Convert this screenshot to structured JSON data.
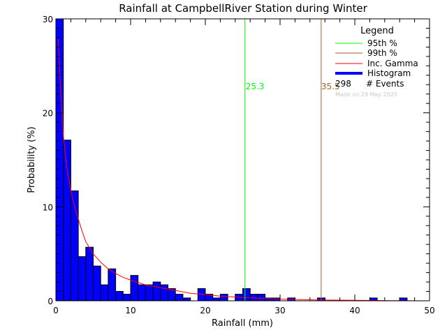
{
  "chart_data": {
    "type": "bar",
    "title": "Rainfall at CampbellRiver Station during Winter",
    "xlabel": "Rainfall (mm)",
    "ylabel": "Probability (%)",
    "xlim": [
      0,
      50
    ],
    "ylim": [
      0,
      30
    ],
    "x_ticks": [
      0,
      10,
      20,
      30,
      40,
      50
    ],
    "y_ticks": [
      0,
      10,
      20,
      30
    ],
    "bin_width": 1,
    "histogram": {
      "name": "Histogram",
      "color": "#0000ff",
      "bin_starts": [
        0,
        1,
        2,
        3,
        4,
        5,
        6,
        7,
        8,
        9,
        10,
        11,
        12,
        13,
        14,
        15,
        16,
        17,
        18,
        19,
        20,
        21,
        22,
        23,
        24,
        25,
        26,
        27,
        28,
        29,
        30,
        31,
        32,
        33,
        34,
        35,
        36,
        37,
        38,
        39,
        40,
        41,
        42,
        43,
        44,
        45,
        46,
        47,
        48,
        49
      ],
      "values": [
        30.0,
        17.1,
        11.7,
        4.7,
        5.7,
        3.7,
        1.7,
        3.4,
        1.0,
        0.7,
        2.7,
        1.7,
        1.7,
        2.0,
        1.7,
        1.3,
        0.7,
        0.3,
        0.0,
        1.3,
        0.7,
        0.3,
        0.7,
        0.0,
        0.7,
        1.3,
        0.7,
        0.7,
        0.3,
        0.3,
        0.0,
        0.3,
        0.0,
        0.0,
        0.0,
        0.3,
        0.0,
        0.0,
        0.0,
        0.0,
        0.0,
        0.0,
        0.3,
        0.0,
        0.0,
        0.0,
        0.3,
        0.0,
        0.0,
        0.0
      ]
    },
    "gamma_curve": {
      "name": "Inc. Gamma",
      "color": "#ff0000",
      "x": [
        0.3,
        0.6,
        1.0,
        1.5,
        2.0,
        2.5,
        3.0,
        3.5,
        4.0,
        5.0,
        6.0,
        7.0,
        8.0,
        9.0,
        10.0,
        12.0,
        14.0,
        16.0,
        18.0,
        20.0,
        22.0,
        25.0,
        28.0,
        31.0,
        35.0,
        40.0,
        45.0,
        50.0
      ],
      "y": [
        27.9,
        23.0,
        17.5,
        14.0,
        11.7,
        10.0,
        8.7,
        7.4,
        6.3,
        5.0,
        4.1,
        3.4,
        2.9,
        2.5,
        2.2,
        1.7,
        1.4,
        1.1,
        0.8,
        0.65,
        0.5,
        0.35,
        0.25,
        0.15,
        0.1,
        0.05,
        0.02,
        0.0
      ]
    },
    "percentile_95": {
      "label": "95th %",
      "value": 25.3,
      "value_label": "25.3",
      "color": "#00ff00"
    },
    "percentile_99": {
      "label": "99th %",
      "value": 35.5,
      "value_label": "35.5",
      "color": "#a0642a"
    },
    "legend": {
      "title": "Legend",
      "position": "upper right",
      "entries": [
        {
          "label": "95th %",
          "color": "#00ff00",
          "style": "line"
        },
        {
          "label": "99th %",
          "color": "#a0642a",
          "style": "line"
        },
        {
          "label": "Inc. Gamma",
          "color": "#ff0000",
          "style": "line"
        },
        {
          "label": "Histogram",
          "color": "#0000ff",
          "style": "thick"
        }
      ],
      "events_count": "298",
      "events_label": "# Events",
      "made_on": "Made on 29 May 2025"
    },
    "grid": false
  }
}
